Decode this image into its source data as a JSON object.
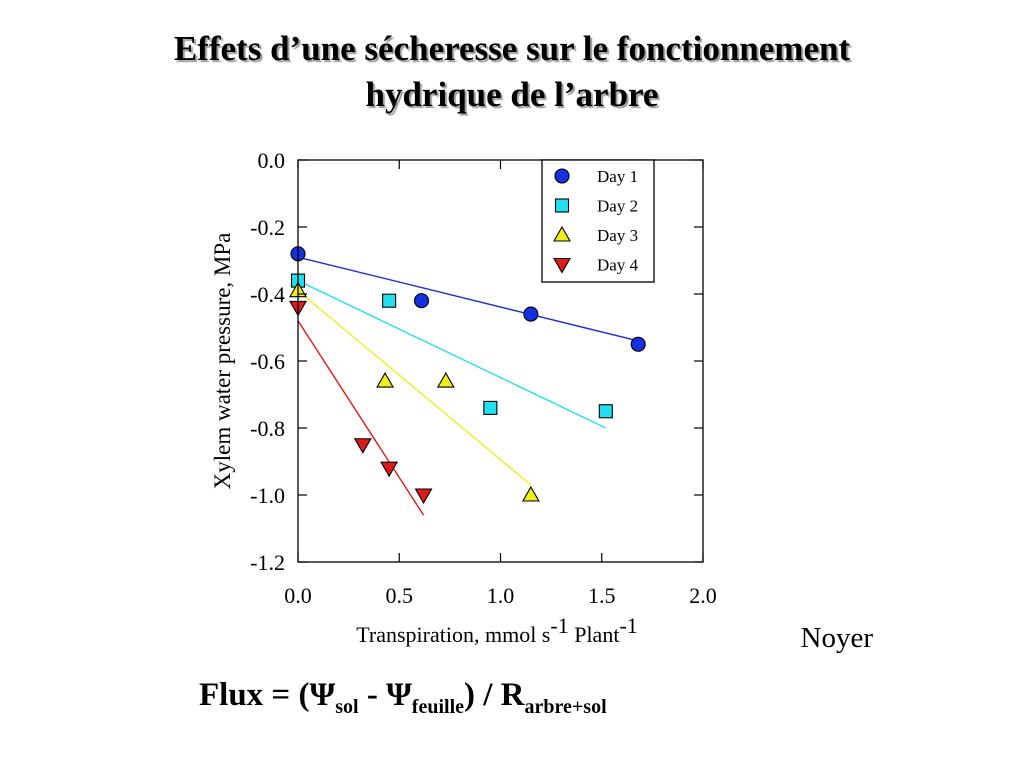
{
  "slide": {
    "title_line1": "Effets d’une sécheresse sur le fonctionnement",
    "title_line2": "hydrique de l’arbre",
    "credit": "Noyer"
  },
  "formula": {
    "lead": "Flux = (",
    "psi1": "Ψ",
    "sub1": "sol",
    "minus": " - ",
    "psi2": "Ψ",
    "sub2": "feuille",
    "mid": ") / R",
    "sub3": "arbre+sol"
  },
  "chart_data": {
    "type": "scatter",
    "xlabel": "Transpiration, mmol s",
    "xlabel_sup1": "-1",
    "xlabel_mid": " Plant",
    "xlabel_sup2": "-1",
    "ylabel": "Xylem water pressure, MPa",
    "xlim": [
      0,
      2
    ],
    "ylim": [
      -1.2,
      0
    ],
    "xticks": [
      "0.0",
      "0.5",
      "1.0",
      "1.5",
      "2.0"
    ],
    "xtick_values": [
      0,
      0.5,
      1.0,
      1.5,
      2.0
    ],
    "yticks": [
      "0.0",
      "-0.2",
      "-0.4",
      "-0.6",
      "-0.8",
      "-1.0",
      "-1.2"
    ],
    "ytick_values": [
      0,
      -0.2,
      -0.4,
      -0.6,
      -0.8,
      -1.0,
      -1.2
    ],
    "legend_position": "top-right",
    "series": [
      {
        "name": "Day 1",
        "marker": "circle",
        "color": "#1530e0",
        "line_color": "#1530e0",
        "x": [
          0.0,
          0.61,
          1.15,
          1.68
        ],
        "y": [
          -0.28,
          -0.42,
          -0.46,
          -0.55
        ],
        "fit": {
          "x": [
            0.0,
            1.68
          ],
          "y": [
            -0.29,
            -0.54
          ]
        }
      },
      {
        "name": "Day 2",
        "marker": "square",
        "color": "#22e0f0",
        "line_color": "#22e0f0",
        "x": [
          0.0,
          0.45,
          0.95,
          1.52
        ],
        "y": [
          -0.36,
          -0.42,
          -0.74,
          -0.75
        ],
        "fit": {
          "x": [
            0.0,
            1.52
          ],
          "y": [
            -0.36,
            -0.8
          ]
        }
      },
      {
        "name": "Day 3",
        "marker": "triangle-up",
        "color": "#f2ee1a",
        "line_color": "#f2ee1a",
        "x": [
          0.0,
          0.43,
          0.73,
          1.15
        ],
        "y": [
          -0.39,
          -0.66,
          -0.66,
          -1.0
        ],
        "fit": {
          "x": [
            0.0,
            1.15
          ],
          "y": [
            -0.39,
            -0.97
          ]
        }
      },
      {
        "name": "Day 4",
        "marker": "triangle-down",
        "color": "#e01a1a",
        "line_color": "#e01a1a",
        "x": [
          0.0,
          0.32,
          0.45,
          0.62
        ],
        "y": [
          -0.44,
          -0.85,
          -0.92,
          -1.0
        ],
        "fit": {
          "x": [
            0.0,
            0.62
          ],
          "y": [
            -0.48,
            -1.06
          ]
        }
      }
    ]
  }
}
